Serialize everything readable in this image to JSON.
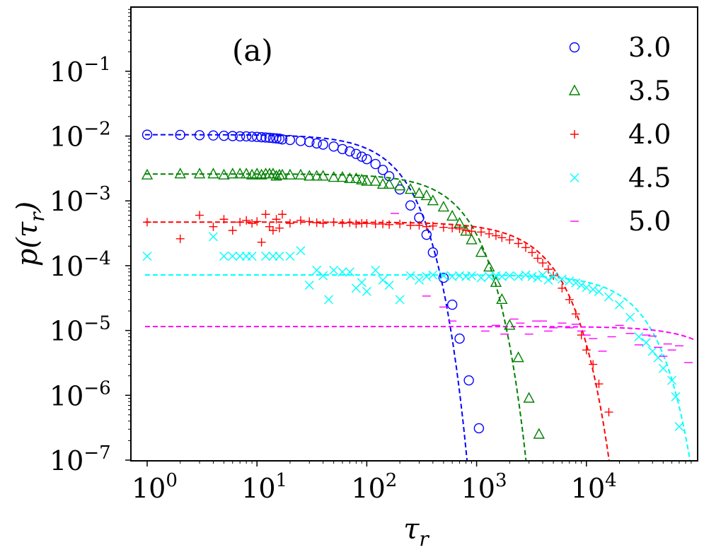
{
  "chart_data": {
    "type": "scatter",
    "title": "",
    "panel_label": "(a)",
    "xlabel": "τ_r",
    "ylabel": "p(τ_r)",
    "xscale": "log",
    "yscale": "log",
    "xlim": [
      0.7,
      90000
    ],
    "ylim": [
      1e-07,
      1
    ],
    "grid": false,
    "legend_position": "top-right",
    "x_ticks": [
      {
        "base": "10",
        "exp": "0",
        "value": 1
      },
      {
        "base": "10",
        "exp": "1",
        "value": 10
      },
      {
        "base": "10",
        "exp": "2",
        "value": 100
      },
      {
        "base": "10",
        "exp": "3",
        "value": 1000
      },
      {
        "base": "10",
        "exp": "4",
        "value": 10000
      }
    ],
    "y_ticks": [
      {
        "base": "10",
        "exp": "−1",
        "value": 0.1
      },
      {
        "base": "10",
        "exp": "−2",
        "value": 0.01
      },
      {
        "base": "10",
        "exp": "−3",
        "value": 0.001
      },
      {
        "base": "10",
        "exp": "−4",
        "value": 0.0001
      },
      {
        "base": "10",
        "exp": "−5",
        "value": 1e-05
      },
      {
        "base": "10",
        "exp": "−6",
        "value": 1e-06
      },
      {
        "base": "10",
        "exp": "−7",
        "value": 1e-07
      }
    ],
    "series": [
      {
        "name": "3.0",
        "marker": "circle",
        "color": "#0000ff",
        "fit": {
          "amplitude": 0.0105,
          "tau": 160,
          "beta": 1.5
        },
        "points": [
          [
            1,
            0.0105
          ],
          [
            2,
            0.0104
          ],
          [
            3,
            0.0103
          ],
          [
            4,
            0.0102
          ],
          [
            5,
            0.0101
          ],
          [
            6,
            0.01
          ],
          [
            7,
            0.0099
          ],
          [
            8,
            0.0099
          ],
          [
            9,
            0.0098
          ],
          [
            10,
            0.0097
          ],
          [
            11,
            0.0096
          ],
          [
            12,
            0.0095
          ],
          [
            13,
            0.0094
          ],
          [
            14,
            0.0093
          ],
          [
            15,
            0.0092
          ],
          [
            16,
            0.0091
          ],
          [
            17,
            0.0089
          ],
          [
            20,
            0.0087
          ],
          [
            25,
            0.0084
          ],
          [
            30,
            0.0081
          ],
          [
            35,
            0.0077
          ],
          [
            40,
            0.0074
          ],
          [
            50,
            0.0069
          ],
          [
            60,
            0.0063
          ],
          [
            70,
            0.0058
          ],
          [
            80,
            0.0053
          ],
          [
            90,
            0.0048
          ],
          [
            100,
            0.0044
          ],
          [
            120,
            0.0037
          ],
          [
            140,
            0.003
          ],
          [
            160,
            0.0024
          ],
          [
            200,
            0.0015
          ],
          [
            250,
            0.00085
          ],
          [
            300,
            0.00055
          ],
          [
            350,
            0.0003
          ],
          [
            400,
            0.00016
          ],
          [
            500,
            6.5e-05
          ],
          [
            600,
            2.5e-05
          ],
          [
            700,
            7.5e-06
          ],
          [
            850,
            1.7e-06
          ],
          [
            1050,
            3.1e-07
          ]
        ]
      },
      {
        "name": "3.5",
        "marker": "triangle",
        "color": "#008000",
        "fit": {
          "amplitude": 0.0026,
          "tau": 600,
          "beta": 1.5
        },
        "points": [
          [
            1,
            0.0025
          ],
          [
            2,
            0.0026
          ],
          [
            3,
            0.0026
          ],
          [
            4,
            0.0026
          ],
          [
            5,
            0.0025
          ],
          [
            6,
            0.0026
          ],
          [
            7,
            0.0026
          ],
          [
            8,
            0.0026
          ],
          [
            9,
            0.0025
          ],
          [
            10,
            0.0026
          ],
          [
            11,
            0.0025
          ],
          [
            12,
            0.0026
          ],
          [
            13,
            0.0026
          ],
          [
            14,
            0.0026
          ],
          [
            15,
            0.0024
          ],
          [
            16,
            0.0025
          ],
          [
            17,
            0.0025
          ],
          [
            20,
            0.0025
          ],
          [
            25,
            0.0025
          ],
          [
            30,
            0.0024
          ],
          [
            35,
            0.0024
          ],
          [
            40,
            0.0024
          ],
          [
            50,
            0.0023
          ],
          [
            60,
            0.0023
          ],
          [
            70,
            0.0022
          ],
          [
            80,
            0.0022
          ],
          [
            90,
            0.0021
          ],
          [
            100,
            0.002
          ],
          [
            120,
            0.002
          ],
          [
            140,
            0.0018
          ],
          [
            160,
            0.0018
          ],
          [
            200,
            0.0017
          ],
          [
            250,
            0.0015
          ],
          [
            300,
            0.0013
          ],
          [
            350,
            0.0012
          ],
          [
            400,
            0.001
          ],
          [
            500,
            0.0008
          ],
          [
            600,
            0.00058
          ],
          [
            700,
            0.00045
          ],
          [
            800,
            0.00034
          ],
          [
            900,
            0.00025
          ],
          [
            1100,
            0.00016
          ],
          [
            1300,
            9.5e-05
          ],
          [
            1500,
            5.5e-05
          ],
          [
            1700,
            3e-05
          ],
          [
            2000,
            1.2e-05
          ],
          [
            2400,
            3.8e-06
          ],
          [
            3000,
            9e-07
          ],
          [
            3700,
            2.5e-07
          ]
        ]
      },
      {
        "name": "4.0",
        "marker": "plus",
        "color": "#ff0000",
        "fit": {
          "amplitude": 0.00047,
          "tau": 3500,
          "beta": 1.4
        },
        "points": [
          [
            1,
            0.00047
          ],
          [
            2,
            0.00026
          ],
          [
            3,
            0.0006
          ],
          [
            4,
            0.0004
          ],
          [
            5,
            0.00052
          ],
          [
            6,
            0.00035
          ],
          [
            7,
            0.00047
          ],
          [
            8,
            0.0005
          ],
          [
            9,
            0.00045
          ],
          [
            10,
            0.00048
          ],
          [
            11,
            0.00023
          ],
          [
            12,
            0.00062
          ],
          [
            13,
            0.0004
          ],
          [
            14,
            0.00035
          ],
          [
            15,
            0.00052
          ],
          [
            16,
            0.00038
          ],
          [
            17,
            0.00062
          ],
          [
            20,
            0.00045
          ],
          [
            25,
            0.0005
          ],
          [
            30,
            0.00048
          ],
          [
            35,
            0.00046
          ],
          [
            40,
            0.00045
          ],
          [
            50,
            0.00047
          ],
          [
            60,
            0.00045
          ],
          [
            70,
            0.00046
          ],
          [
            80,
            0.00044
          ],
          [
            90,
            0.00045
          ],
          [
            100,
            0.00045
          ],
          [
            120,
            0.00044
          ],
          [
            140,
            0.00044
          ],
          [
            160,
            0.00043
          ],
          [
            200,
            0.00044
          ],
          [
            250,
            0.00042
          ],
          [
            300,
            0.00042
          ],
          [
            350,
            0.0004
          ],
          [
            400,
            0.00041
          ],
          [
            500,
            0.00039
          ],
          [
            600,
            0.00038
          ],
          [
            700,
            0.00037
          ],
          [
            800,
            0.00035
          ],
          [
            900,
            0.00034
          ],
          [
            1100,
            0.00033
          ],
          [
            1300,
            0.00031
          ],
          [
            1500,
            0.00029
          ],
          [
            1700,
            0.00027
          ],
          [
            2000,
            0.00025
          ],
          [
            2400,
            0.00022
          ],
          [
            2800,
            0.00019
          ],
          [
            3200,
            0.00016
          ],
          [
            3600,
            0.00013
          ],
          [
            4000,
            0.00011
          ],
          [
            4500,
            8.8e-05
          ],
          [
            5000,
            7e-05
          ],
          [
            6000,
            4.5e-05
          ],
          [
            7000,
            3e-05
          ],
          [
            8000,
            1.8e-05
          ],
          [
            9000,
            8.5e-06
          ],
          [
            10000,
            5e-06
          ],
          [
            11500,
            3e-06
          ],
          [
            13000,
            1.5e-06
          ],
          [
            16000,
            5.5e-07
          ]
        ]
      },
      {
        "name": "4.5",
        "marker": "x",
        "color": "#00ffff",
        "fit": {
          "amplitude": 7.2e-05,
          "tau": 25000,
          "beta": 1.5
        },
        "points": [
          [
            1,
            0.00014
          ],
          [
            4,
            0.00028
          ],
          [
            5,
            0.00014
          ],
          [
            6,
            0.00014
          ],
          [
            7,
            0.00014
          ],
          [
            8,
            0.00014
          ],
          [
            9,
            0.00014
          ],
          [
            12,
            0.00014
          ],
          [
            14,
            0.00014
          ],
          [
            16,
            0.00014
          ],
          [
            20,
            0.00014
          ],
          [
            25,
            0.00017
          ],
          [
            30,
            5e-05
          ],
          [
            35,
            8.5e-05
          ],
          [
            40,
            7e-05
          ],
          [
            45,
            3e-05
          ],
          [
            50,
            8.5e-05
          ],
          [
            60,
            8e-05
          ],
          [
            70,
            8e-05
          ],
          [
            80,
            4.5e-05
          ],
          [
            90,
            5.5e-05
          ],
          [
            100,
            4e-05
          ],
          [
            120,
            8.5e-05
          ],
          [
            140,
            6e-05
          ],
          [
            160,
            5e-05
          ],
          [
            200,
            3e-05
          ],
          [
            250,
            7e-05
          ],
          [
            300,
            6e-05
          ],
          [
            350,
            6.8e-05
          ],
          [
            400,
            7.2e-05
          ],
          [
            500,
            7e-05
          ],
          [
            600,
            6.8e-05
          ],
          [
            700,
            7e-05
          ],
          [
            800,
            6.8e-05
          ],
          [
            900,
            7e-05
          ],
          [
            1100,
            6.5e-05
          ],
          [
            1300,
            6.8e-05
          ],
          [
            1500,
            7e-05
          ],
          [
            1700,
            6.8e-05
          ],
          [
            2000,
            7e-05
          ],
          [
            2400,
            6.8e-05
          ],
          [
            2800,
            7.2e-05
          ],
          [
            3200,
            6.8e-05
          ],
          [
            3600,
            6.5e-05
          ],
          [
            4000,
            7.2e-05
          ],
          [
            4500,
            6e-05
          ],
          [
            5000,
            6.8e-05
          ],
          [
            6000,
            6.2e-05
          ],
          [
            7000,
            5.8e-05
          ],
          [
            8000,
            5.4e-05
          ],
          [
            9000,
            5e-05
          ],
          [
            10000,
            4.6e-05
          ],
          [
            11500,
            4.3e-05
          ],
          [
            13000,
            4e-05
          ],
          [
            16000,
            3.3e-05
          ],
          [
            20000,
            2.5e-05
          ],
          [
            25000,
            1.6e-05
          ],
          [
            30000,
            8e-06
          ],
          [
            35000,
            6.5e-06
          ],
          [
            40000,
            4.8e-06
          ],
          [
            45000,
            3.8e-06
          ],
          [
            50000,
            2.6e-06
          ],
          [
            60000,
            1.7e-06
          ],
          [
            65000,
            9.5e-07
          ],
          [
            70000,
            3.3e-07
          ]
        ]
      },
      {
        "name": "5.0",
        "marker": "hline",
        "color": "#ff00ff",
        "fit": {
          "amplitude": 1.15e-05,
          "tau": 160000,
          "beta": 1.5
        },
        "points": [
          [
            180,
            0.00064
          ],
          [
            350,
            3.4e-05
          ],
          [
            500,
            2.3e-05
          ],
          [
            600,
            1.4e-05
          ],
          [
            1200,
            9.8e-06
          ],
          [
            1500,
            1.2e-05
          ],
          [
            1800,
            8.8e-06
          ],
          [
            2200,
            1.5e-05
          ],
          [
            2500,
            1.3e-05
          ],
          [
            3000,
            8.8e-06
          ],
          [
            3500,
            1.4e-05
          ],
          [
            4000,
            1.4e-05
          ],
          [
            4500,
            9.8e-06
          ],
          [
            5000,
            1.1e-05
          ],
          [
            6000,
            1.3e-05
          ],
          [
            7000,
            1.1e-05
          ],
          [
            8000,
            1.25e-05
          ],
          [
            9000,
            9.8e-06
          ],
          [
            10000,
            8.5e-06
          ],
          [
            11500,
            7.5e-06
          ],
          [
            14000,
            4.8e-06
          ],
          [
            17000,
            8e-06
          ],
          [
            20000,
            1.2e-05
          ],
          [
            25000,
            9e-06
          ],
          [
            30000,
            6e-06
          ],
          [
            35000,
            8.5e-06
          ],
          [
            40000,
            8.2e-06
          ],
          [
            45000,
            5.5e-06
          ],
          [
            50000,
            4e-06
          ],
          [
            55000,
            6.2e-06
          ],
          [
            60000,
            5e-06
          ],
          [
            70000,
            5.8e-06
          ],
          [
            85000,
            3.2e-06
          ]
        ]
      }
    ]
  }
}
